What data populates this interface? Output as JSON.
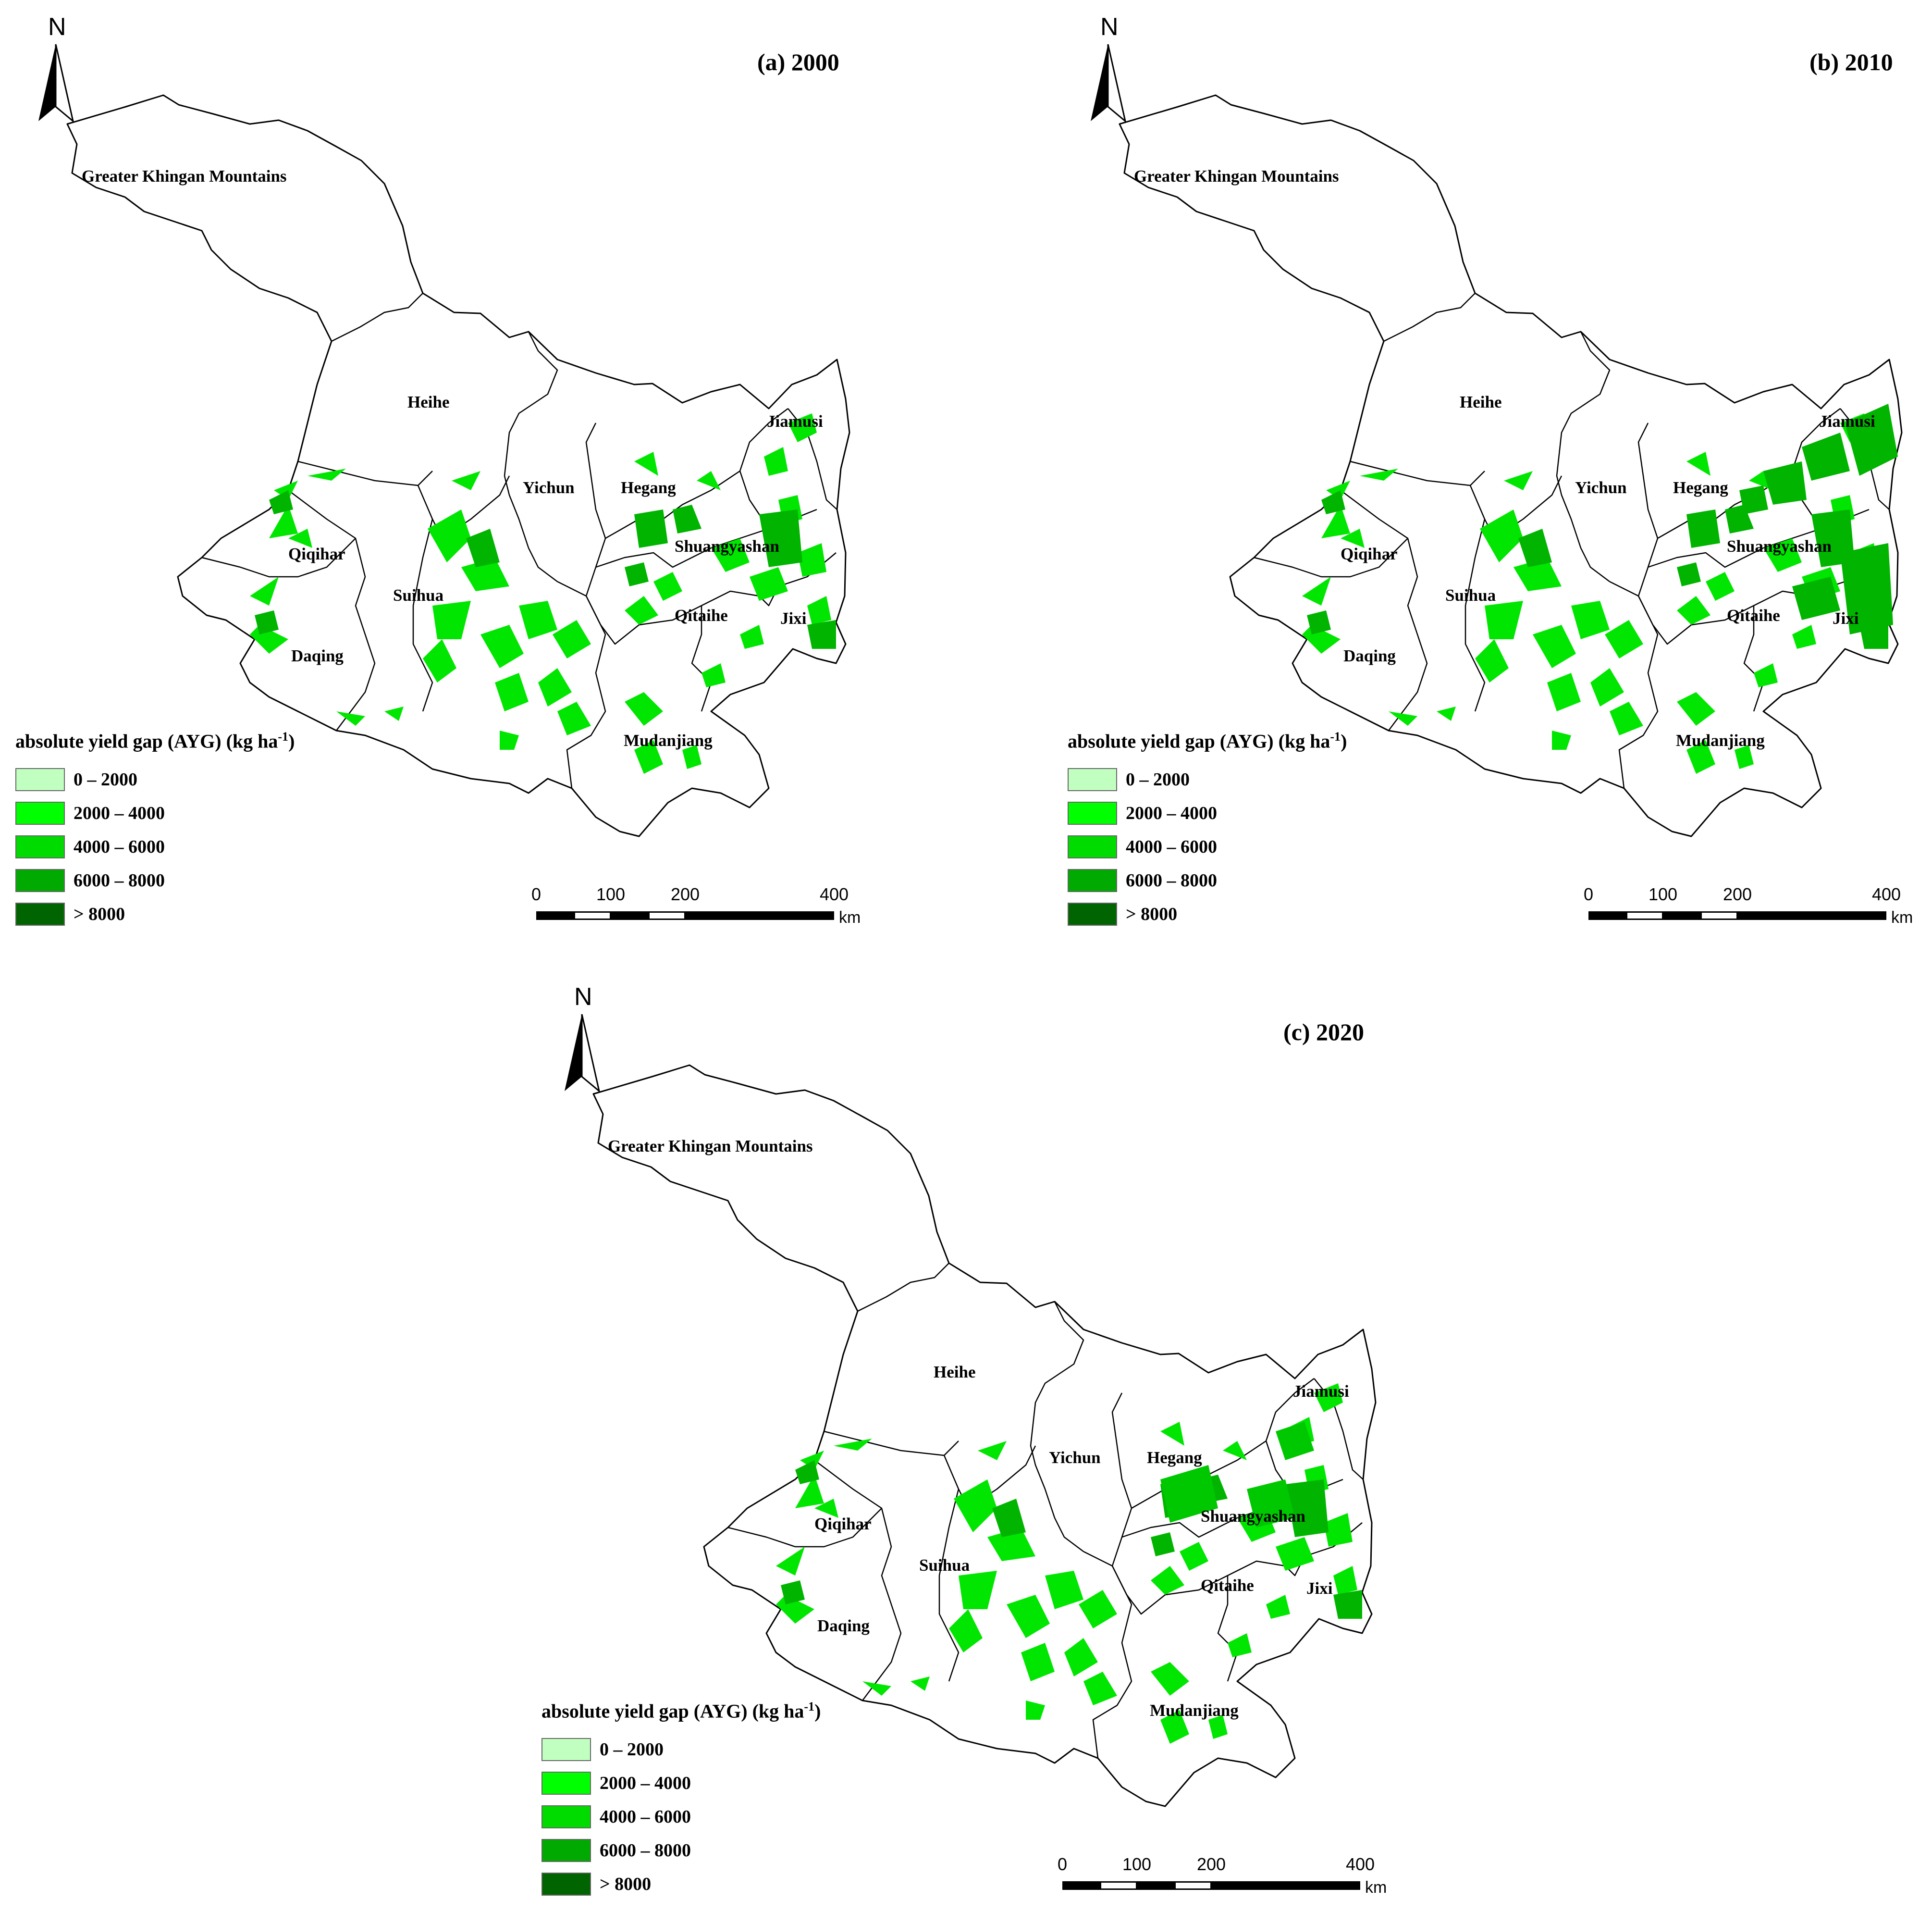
{
  "panels": [
    {
      "id": "a",
      "title": "(a) 2000"
    },
    {
      "id": "b",
      "title": "(b) 2010"
    },
    {
      "id": "c",
      "title": "(c) 2020"
    }
  ],
  "north_label": "N",
  "regions": {
    "greater_khingan": "Greater Khingan Mountains",
    "heihe": "Heihe",
    "yichun": "Yichun",
    "jiamusi": "Jiamusi",
    "hegang": "Hegang",
    "shuangyashan": "Shuangyashan",
    "qiqihar": "Qiqihar",
    "suihua": "Suihua",
    "qitaihe": "Qitaihe",
    "jixi": "Jixi",
    "daqing": "Daqing",
    "mudanjiang": "Mudanjiang"
  },
  "legend": {
    "title_main": "absolute yield gap (AYG) (kg ha",
    "title_sup": "-1",
    "title_end": ")",
    "classes": [
      {
        "label": "0 – 2000",
        "color": "#c0ffc0"
      },
      {
        "label": "2000 – 4000",
        "color": "#00ff00"
      },
      {
        "label": "4000 – 6000",
        "color": "#00dc00"
      },
      {
        "label": "6000 – 8000",
        "color": "#00aa00"
      },
      {
        "label": "> 8000",
        "color": "#006400"
      }
    ]
  },
  "scale": {
    "ticks": [
      "0",
      "100",
      "200",
      "400"
    ],
    "unit": "km"
  },
  "colors": {
    "crop": "#00e600",
    "crop_dense": "#00b400",
    "boundary": "#000000"
  }
}
